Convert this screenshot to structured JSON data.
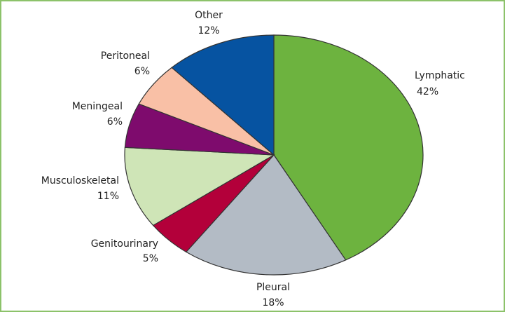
{
  "chart_data": {
    "type": "pie",
    "categories": [
      "Lymphatic",
      "Pleural",
      "Genitourinary",
      "Musculoskeletal",
      "Meningeal",
      "Peritoneal",
      "Other"
    ],
    "values": [
      42,
      18,
      5,
      11,
      6,
      6,
      12
    ],
    "value_labels": [
      "42%",
      "18%",
      "5%",
      "11%",
      "6%",
      "6%",
      "12%"
    ],
    "colors": [
      "#6db33f",
      "#b3bbc5",
      "#b3003a",
      "#cfe5b7",
      "#7e0b6d",
      "#f9c0a6",
      "#0653a1"
    ]
  }
}
